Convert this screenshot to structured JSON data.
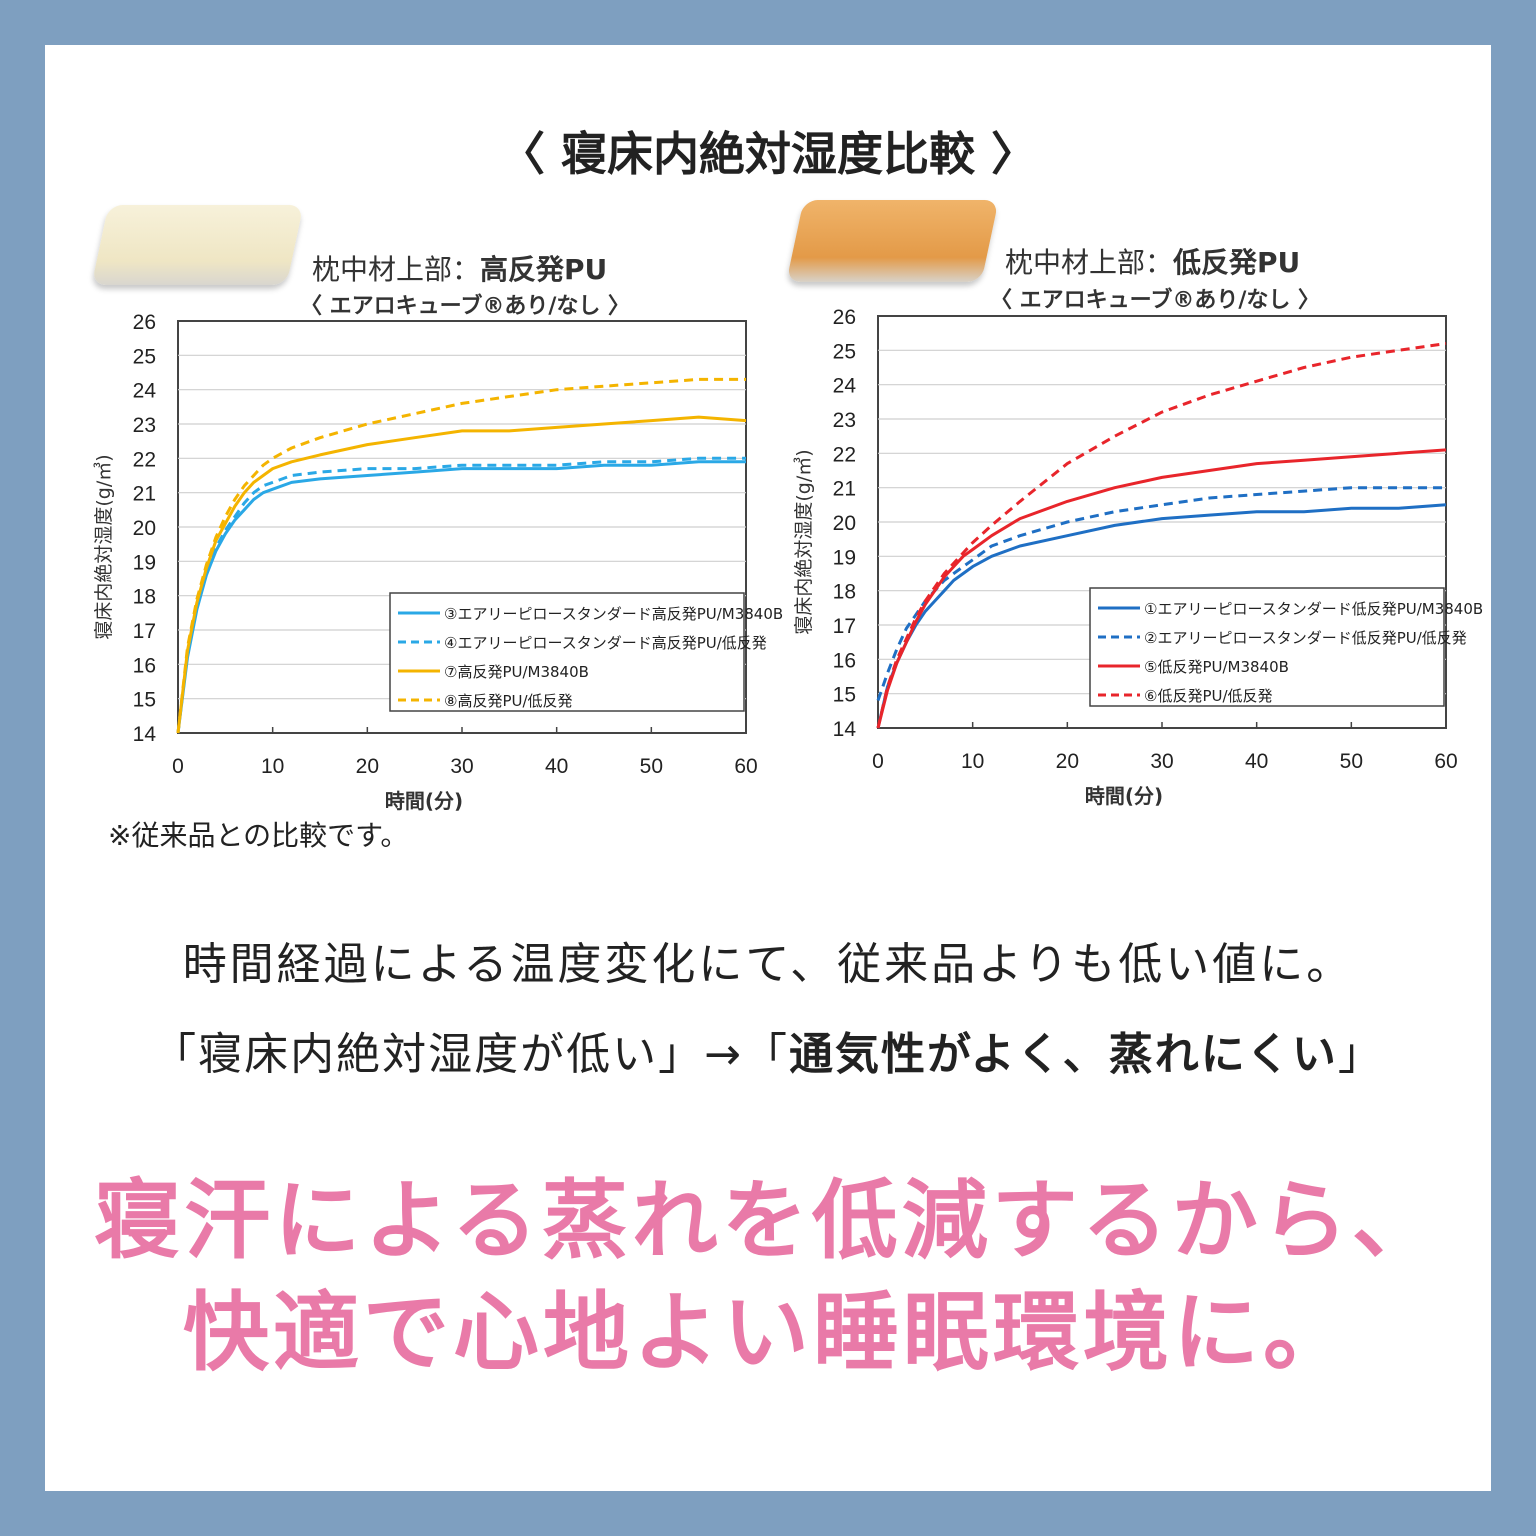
{
  "title": "〈 寝床内絶対湿度比較 〉",
  "colors": {
    "frame": "#7e9fc0",
    "pink": "#e97aa8",
    "blue": "#1a8fd8",
    "lightblue": "#2aa8e6",
    "yellow": "#f4b400",
    "red": "#e8252b",
    "darkblue": "#1f6fc4"
  },
  "panels": [
    {
      "title_prefix": "枕中材上部：",
      "title_bold": "高反発PU",
      "subtitle": "〈 エアロキューブ®あり/なし 〉",
      "pillow_color": "#f2ebcf"
    },
    {
      "title_prefix": "枕中材上部：",
      "title_bold": "低反発PU",
      "subtitle": "〈 エアロキューブ®あり/なし 〉",
      "pillow_color": "#e8a45a"
    }
  ],
  "chart_data": [
    {
      "type": "line",
      "xlabel": "時間(分)",
      "ylabel": "寝床内絶対湿度(g/㎥)",
      "xlim": [
        0,
        60
      ],
      "ylim": [
        14,
        26
      ],
      "xticks": [
        0,
        10,
        20,
        30,
        40,
        50,
        60
      ],
      "yticks": [
        14,
        15,
        16,
        17,
        18,
        19,
        20,
        21,
        22,
        23,
        24,
        25,
        26
      ],
      "grid": true,
      "legend_position": "bottom-right",
      "series": [
        {
          "name": "③エアリーピロースタンダード高反発PU/M3840B",
          "color": "#2aa8e6",
          "dash": false,
          "x": [
            0,
            1,
            2,
            3,
            4,
            5,
            6,
            7,
            8,
            9,
            10,
            12,
            15,
            20,
            25,
            30,
            35,
            40,
            45,
            50,
            55,
            60
          ],
          "y": [
            14,
            16.2,
            17.6,
            18.6,
            19.3,
            19.8,
            20.2,
            20.5,
            20.8,
            21.0,
            21.1,
            21.3,
            21.4,
            21.5,
            21.6,
            21.7,
            21.7,
            21.7,
            21.8,
            21.8,
            21.9,
            21.9
          ]
        },
        {
          "name": "④エアリーピロースタンダード高反発PU/低反発",
          "color": "#2aa8e6",
          "dash": true,
          "x": [
            0,
            1,
            2,
            3,
            4,
            5,
            6,
            7,
            8,
            9,
            10,
            12,
            15,
            20,
            25,
            30,
            35,
            40,
            45,
            50,
            55,
            60
          ],
          "y": [
            14,
            16.3,
            17.7,
            18.7,
            19.4,
            19.9,
            20.3,
            20.7,
            21.0,
            21.2,
            21.3,
            21.5,
            21.6,
            21.7,
            21.7,
            21.8,
            21.8,
            21.8,
            21.9,
            21.9,
            22.0,
            22.0
          ]
        },
        {
          "name": "⑦高反発PU/M3840B",
          "color": "#f4b400",
          "dash": false,
          "x": [
            0,
            1,
            2,
            3,
            4,
            5,
            6,
            7,
            8,
            9,
            10,
            12,
            15,
            20,
            25,
            30,
            35,
            40,
            45,
            50,
            55,
            60
          ],
          "y": [
            14,
            16.4,
            17.8,
            18.8,
            19.6,
            20.1,
            20.6,
            21.0,
            21.3,
            21.5,
            21.7,
            21.9,
            22.1,
            22.4,
            22.6,
            22.8,
            22.8,
            22.9,
            23.0,
            23.1,
            23.2,
            23.1
          ]
        },
        {
          "name": "⑧高反発PU/低反発",
          "color": "#f4b400",
          "dash": true,
          "x": [
            0,
            1,
            2,
            3,
            4,
            5,
            6,
            7,
            8,
            9,
            10,
            12,
            15,
            20,
            25,
            30,
            35,
            40,
            45,
            50,
            55,
            60
          ],
          "y": [
            14,
            16.5,
            17.9,
            18.9,
            19.7,
            20.3,
            20.8,
            21.2,
            21.5,
            21.8,
            22.0,
            22.3,
            22.6,
            23.0,
            23.3,
            23.6,
            23.8,
            24.0,
            24.1,
            24.2,
            24.3,
            24.3
          ]
        }
      ]
    },
    {
      "type": "line",
      "xlabel": "時間(分)",
      "ylabel": "寝床内絶対湿度(g/㎥)",
      "xlim": [
        0,
        60
      ],
      "ylim": [
        14,
        26
      ],
      "xticks": [
        0,
        10,
        20,
        30,
        40,
        50,
        60
      ],
      "yticks": [
        14,
        15,
        16,
        17,
        18,
        19,
        20,
        21,
        22,
        23,
        24,
        25,
        26
      ],
      "grid": true,
      "legend_position": "bottom-right",
      "series": [
        {
          "name": "①エアリーピロースタンダード低反発PU/M3840B",
          "color": "#1f6fc4",
          "dash": false,
          "x": [
            0,
            1,
            2,
            3,
            4,
            5,
            6,
            7,
            8,
            9,
            10,
            12,
            15,
            20,
            25,
            30,
            35,
            40,
            45,
            50,
            55,
            60
          ],
          "y": [
            14,
            15.2,
            15.9,
            16.5,
            17.0,
            17.4,
            17.7,
            18.0,
            18.3,
            18.5,
            18.7,
            19.0,
            19.3,
            19.6,
            19.9,
            20.1,
            20.2,
            20.3,
            20.3,
            20.4,
            20.4,
            20.5
          ]
        },
        {
          "name": "②エアリーピロースタンダード低反発PU/低反発",
          "color": "#1f6fc4",
          "dash": true,
          "x": [
            0,
            1,
            2,
            3,
            4,
            5,
            6,
            7,
            8,
            9,
            10,
            12,
            15,
            20,
            25,
            30,
            35,
            40,
            45,
            50,
            55,
            60
          ],
          "y": [
            14.8,
            15.6,
            16.3,
            16.9,
            17.3,
            17.7,
            18.0,
            18.3,
            18.5,
            18.7,
            18.9,
            19.3,
            19.6,
            20.0,
            20.3,
            20.5,
            20.7,
            20.8,
            20.9,
            21.0,
            21.0,
            21.0
          ]
        },
        {
          "name": "⑤低反発PU/M3840B",
          "color": "#e8252b",
          "dash": false,
          "x": [
            0,
            1,
            2,
            3,
            4,
            5,
            6,
            7,
            8,
            9,
            10,
            12,
            15,
            20,
            25,
            30,
            35,
            40,
            45,
            50,
            55,
            60
          ],
          "y": [
            14,
            15.1,
            15.9,
            16.5,
            17.1,
            17.6,
            18.0,
            18.4,
            18.7,
            19.0,
            19.2,
            19.6,
            20.1,
            20.6,
            21.0,
            21.3,
            21.5,
            21.7,
            21.8,
            21.9,
            22.0,
            22.1
          ]
        },
        {
          "name": "⑥低反発PU/低反発",
          "color": "#e8252b",
          "dash": true,
          "x": [
            0,
            1,
            2,
            3,
            4,
            5,
            6,
            7,
            8,
            9,
            10,
            12,
            15,
            20,
            25,
            30,
            35,
            40,
            45,
            50,
            55,
            60
          ],
          "y": [
            14,
            15.2,
            16.0,
            16.6,
            17.2,
            17.7,
            18.1,
            18.5,
            18.8,
            19.1,
            19.4,
            19.9,
            20.6,
            21.7,
            22.5,
            23.2,
            23.7,
            24.1,
            24.5,
            24.8,
            25.0,
            25.2
          ]
        }
      ]
    }
  ],
  "note": "※従来品との比較です。",
  "line1": "時間経過による温度変化にて、従来品よりも低い値に。",
  "line2_plain": "「寝床内絶対湿度が低い」→「",
  "line2_bold": "通気性がよく、蒸れにくい",
  "line2_end": "」",
  "pink_line1": "寝汗による蒸れを低減するから、",
  "pink_line2": "快適で心地よい睡眠環境に。"
}
